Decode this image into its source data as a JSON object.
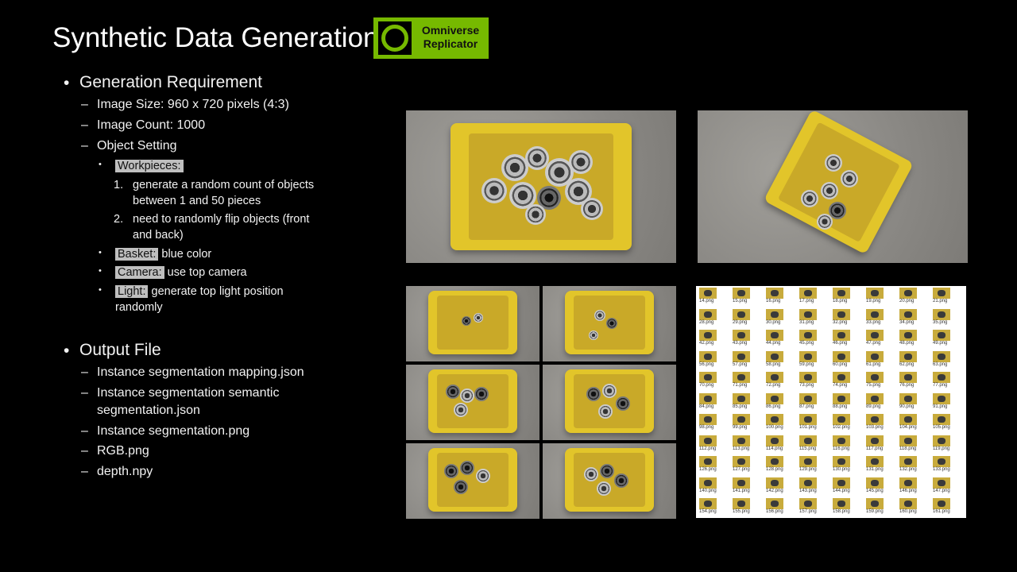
{
  "title": "Synthetic Data Generation",
  "logo": {
    "line1": "Omniverse",
    "line2": "Replicator"
  },
  "requirements": {
    "heading": "Generation Requirement",
    "image_size": "Image Size: 960 x 720 pixels (4:3)",
    "image_count": "Image Count: 1000",
    "object_setting": "Object Setting",
    "workpieces": {
      "label": "Workpieces:",
      "item1_num": "1.",
      "item1_line1": "generate a random count of objects",
      "item1_line2": "between 1 and 50 pieces",
      "item2_num": "2.",
      "item2_line1": "need to randomly flip objects (front",
      "item2_line2": "and back)"
    },
    "basket": {
      "label": "Basket:",
      "text": "blue color"
    },
    "camera": {
      "label": "Camera:",
      "text": "use top camera"
    },
    "light": {
      "label": "Light:",
      "text": "generate top light position",
      "text2": "randomly"
    }
  },
  "output": {
    "heading": "Output File",
    "files": [
      "Instance segmentation mapping.json",
      "Instance segmentation semantic",
      "segmentation.json",
      "Instance segmentation.png",
      "RGB.png",
      "depth.npy"
    ]
  },
  "grid_labels": [
    [
      "14.png",
      "15.png",
      "16.png",
      "17.png",
      "18.png",
      "19.png",
      "20.png",
      "21.png"
    ],
    [
      "28.png",
      "29.png",
      "30.png",
      "31.png",
      "32.png",
      "33.png",
      "34.png",
      "35.png"
    ],
    [
      "42.png",
      "43.png",
      "44.png",
      "45.png",
      "46.png",
      "47.png",
      "48.png",
      "49.png"
    ],
    [
      "56.png",
      "57.png",
      "58.png",
      "59.png",
      "60.png",
      "61.png",
      "62.png",
      "63.png"
    ],
    [
      "70.png",
      "71.png",
      "72.png",
      "73.png",
      "74.png",
      "75.png",
      "76.png",
      "77.png"
    ],
    [
      "84.png",
      "85.png",
      "86.png",
      "87.png",
      "88.png",
      "89.png",
      "90.png",
      "91.png"
    ],
    [
      "98.png",
      "99.png",
      "100.png",
      "101.png",
      "102.png",
      "103.png",
      "104.png",
      "105.png"
    ],
    [
      "112.png",
      "113.png",
      "114.png",
      "115.png",
      "116.png",
      "117.png",
      "118.png",
      "119.png"
    ],
    [
      "126.png",
      "127.png",
      "128.png",
      "129.png",
      "130.png",
      "131.png",
      "132.png",
      "133.png"
    ],
    [
      "140.png",
      "141.png",
      "142.png",
      "143.png",
      "144.png",
      "145.png",
      "146.png",
      "147.png"
    ],
    [
      "154.png",
      "155.png",
      "156.png",
      "157.png",
      "158.png",
      "159.png",
      "160.png",
      "161.png"
    ]
  ],
  "colors": {
    "logo_green": "#76b900",
    "crate_yellow": "#e2c52a",
    "highlight": "#bfbfbf"
  }
}
